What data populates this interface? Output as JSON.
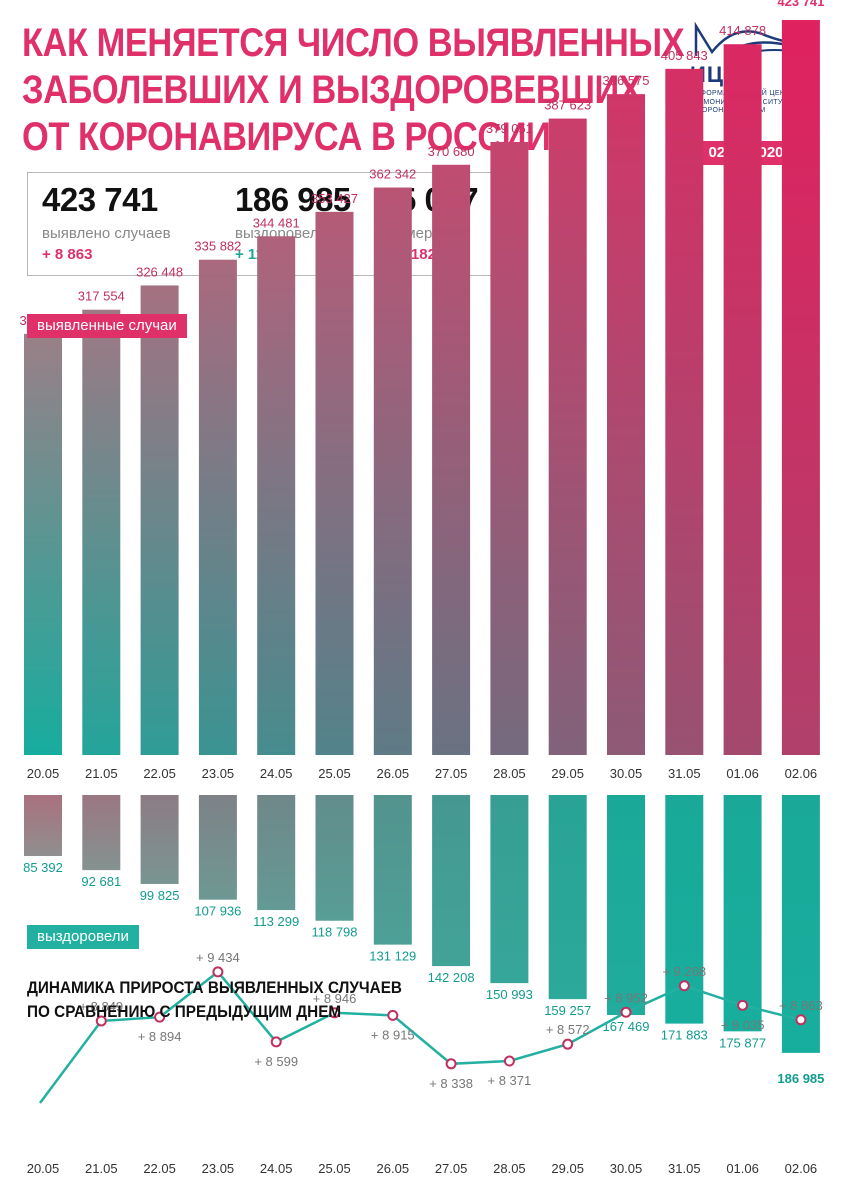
{
  "header": {
    "title_lines": [
      "КАК МЕНЯЕТСЯ ЧИСЛО ВЫЯВЛЕННЫХ",
      "ЗАБОЛЕВШИХ И ВЫЗДОРОВЕВШИХ",
      "ОТ КОРОНАВИРУСА В РОССИИ"
    ],
    "logo_name": "ИЦК",
    "logo_subtitle_lines": [
      "ИНФОРМАЦИОННЫЙ ЦЕНТР",
      "ПО МОНИТОРИНГУ СИТУАЦИИ",
      "С КОРОНАВИРУСОМ"
    ],
    "date": "02.06.2020"
  },
  "summary": {
    "cases": {
      "value": "423 741",
      "label": "выявлено случаев",
      "delta": "+ 8 863"
    },
    "recovered": {
      "value": "186 985",
      "label": "выздоровели",
      "delta": "+ 11 108"
    },
    "deaths": {
      "value": "5 037",
      "label": "умерли",
      "delta": "+ 182"
    }
  },
  "colors": {
    "accent": "#e0306a",
    "teal": "#1ba89a",
    "gray": "#9a8a8e",
    "logo": "#1d3b7a"
  },
  "chart_data": [
    {
      "type": "bar",
      "tag": "выявленные случаи",
      "categories": [
        "20.05",
        "21.05",
        "22.05",
        "23.05",
        "24.05",
        "25.05",
        "26.05",
        "27.05",
        "28.05",
        "29.05",
        "30.05",
        "31.05",
        "01.06",
        "02.06"
      ],
      "values": [
        308705,
        317554,
        326448,
        335882,
        344481,
        353427,
        362342,
        370680,
        379051,
        387623,
        396575,
        405843,
        414878,
        423741
      ],
      "value_labels": [
        "308 705",
        "317 554",
        "326 448",
        "335 882",
        "344 481",
        "353 427",
        "362 342",
        "370 680",
        "379 051",
        "387 623",
        "396 575",
        "405 843",
        "414 878",
        "423 741"
      ]
    },
    {
      "type": "bar",
      "tag": "выздоровели",
      "categories": [
        "20.05",
        "21.05",
        "22.05",
        "23.05",
        "24.05",
        "25.05",
        "26.05",
        "27.05",
        "28.05",
        "29.05",
        "30.05",
        "31.05",
        "01.06",
        "02.06"
      ],
      "values": [
        85392,
        92681,
        99825,
        107936,
        113299,
        118798,
        131129,
        142208,
        150993,
        159257,
        167469,
        171883,
        175877,
        186985
      ],
      "value_labels": [
        "85 392",
        "92 681",
        "99 825",
        "107 936",
        "113 299",
        "118 798",
        "131 129",
        "142 208",
        "150 993",
        "159 257",
        "167 469",
        "171 883",
        "175 877",
        "186 985"
      ]
    },
    {
      "type": "line",
      "title_lines": [
        "ДИНАМИКА ПРИРОСТА ВЫЯВЛЕННЫХ СЛУЧАЕВ",
        "ПО СРАВНЕНИЮ С ПРЕДЫДУЩИМ ДНЕМ"
      ],
      "categories": [
        "20.05",
        "21.05",
        "22.05",
        "23.05",
        "24.05",
        "25.05",
        "26.05",
        "27.05",
        "28.05",
        "29.05",
        "30.05",
        "31.05",
        "01.06",
        "02.06"
      ],
      "values": [
        null,
        8849,
        8894,
        9434,
        8599,
        8946,
        8915,
        8338,
        8371,
        8572,
        8952,
        9268,
        9035,
        8863
      ],
      "value_labels": [
        "",
        "+ 8 849",
        "+ 8 894",
        "+ 9 434",
        "+ 8 599",
        "+ 8 946",
        "+ 8 915",
        "+ 8 338",
        "+ 8 371",
        "+ 8 572",
        "+ 8 952",
        "+ 9 268",
        "+ 9 035",
        "+ 8 863"
      ]
    }
  ]
}
